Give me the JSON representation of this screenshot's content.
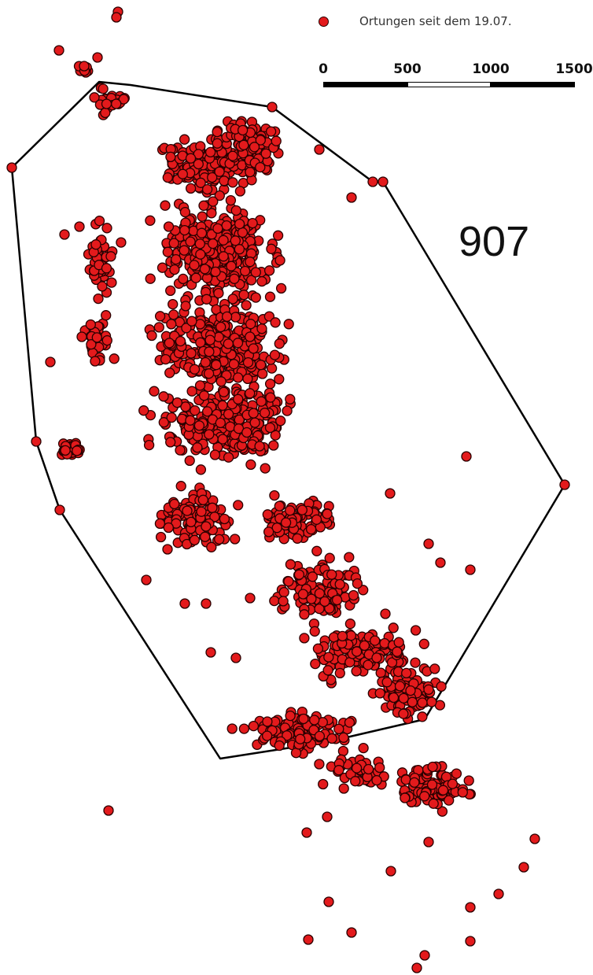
{
  "legend": {
    "symbol_color": "#e31a1c",
    "label": "Ortungen seit dem 19.07."
  },
  "scalebar": {
    "labels": [
      "0",
      "500",
      "1000",
      "1500"
    ]
  },
  "annotation": {
    "value": "907"
  },
  "style": {
    "point_fill": "#e31a1c",
    "point_stroke": "#2a0000",
    "hull_stroke": "#000000"
  }
}
